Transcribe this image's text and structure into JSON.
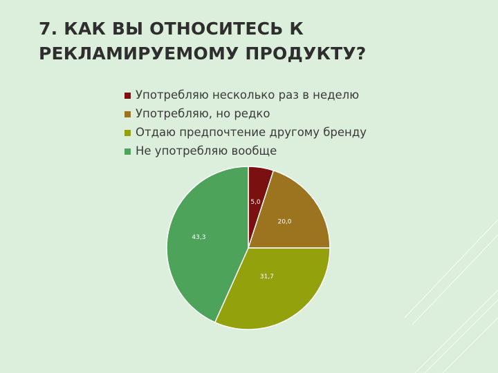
{
  "slide": {
    "title_line1": "7. КАК ВЫ ОТНОСИТЕСЬ К",
    "title_line2": "РЕКЛАМИРУЕМОМУ ПРОДУКТУ?"
  },
  "colors": {
    "background": "#dcefdc"
  },
  "chart_data": {
    "type": "pie",
    "title": "",
    "legend_position": "top",
    "categories": [
      "Употребляю несколько раз в неделю",
      "Употребляю, но редко",
      "Отдаю предпочтение другому бренду",
      "Не употребляю вообще"
    ],
    "values": [
      5.0,
      20.0,
      31.7,
      43.3
    ],
    "data_labels": [
      "5,0",
      "20,0",
      "31,7",
      "43,3"
    ],
    "colors": [
      "#7a1010",
      "#9c7420",
      "#93a20c",
      "#4ea35a"
    ]
  }
}
